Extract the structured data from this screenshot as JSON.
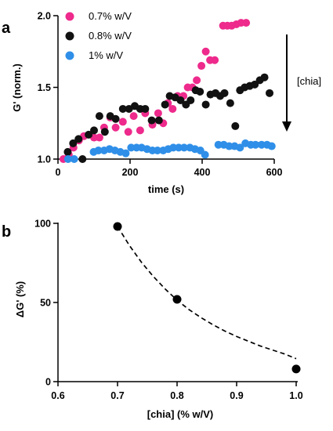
{
  "chart_data": [
    {
      "panel_label": "a",
      "type": "scatter",
      "xlabel": "time (s)",
      "ylabel": "G' (norm.)",
      "xlim": [
        0,
        600
      ],
      "ylim": [
        1.0,
        2.0
      ],
      "xticks": [
        0,
        200,
        400,
        600
      ],
      "yticks": [
        1.0,
        1.5,
        2.0
      ],
      "ytick_labels": [
        "1.0",
        "1.5",
        "2.0"
      ],
      "grid": false,
      "legend_position": "top-left",
      "annotation": {
        "text": "[chia]",
        "arrow": "down"
      },
      "series": [
        {
          "name": "0.7% w/V",
          "color": "#ee2a8c",
          "points": [
            [
              15,
              1.0
            ],
            [
              30,
              1.03
            ],
            [
              43,
              1.08
            ],
            [
              58,
              1.13
            ],
            [
              72,
              1.16
            ],
            [
              100,
              1.15
            ],
            [
              115,
              1.15
            ],
            [
              128,
              1.22
            ],
            [
              145,
              1.29
            ],
            [
              160,
              1.22
            ],
            [
              180,
              1.26
            ],
            [
              195,
              1.19
            ],
            [
              210,
              1.3
            ],
            [
              228,
              1.2
            ],
            [
              242,
              1.32
            ],
            [
              262,
              1.24
            ],
            [
              278,
              1.32
            ],
            [
              292,
              1.25
            ],
            [
              305,
              1.39
            ],
            [
              318,
              1.35
            ],
            [
              332,
              1.44
            ],
            [
              348,
              1.44
            ],
            [
              360,
              1.5
            ],
            [
              373,
              1.5
            ],
            [
              385,
              1.55
            ],
            [
              398,
              1.65
            ],
            [
              410,
              1.75
            ],
            [
              422,
              1.69
            ],
            [
              435,
              1.69
            ],
            [
              458,
              1.93
            ],
            [
              470,
              1.93
            ],
            [
              482,
              1.93
            ],
            [
              495,
              1.94
            ],
            [
              508,
              1.95
            ],
            [
              522,
              1.95
            ]
          ]
        },
        {
          "name": "0.8% w/V",
          "color": "#111111",
          "points": [
            [
              27,
              1.05
            ],
            [
              42,
              1.11
            ],
            [
              57,
              1.14
            ],
            [
              68,
              1.0
            ],
            [
              85,
              1.17
            ],
            [
              100,
              1.2
            ],
            [
              115,
              1.3
            ],
            [
              130,
              1.19
            ],
            [
              145,
              1.3
            ],
            [
              160,
              1.28
            ],
            [
              180,
              1.35
            ],
            [
              197,
              1.35
            ],
            [
              213,
              1.37
            ],
            [
              228,
              1.35
            ],
            [
              242,
              1.35
            ],
            [
              260,
              1.27
            ],
            [
              280,
              1.27
            ],
            [
              297,
              1.38
            ],
            [
              310,
              1.44
            ],
            [
              325,
              1.43
            ],
            [
              340,
              1.41
            ],
            [
              355,
              1.38
            ],
            [
              368,
              1.41
            ],
            [
              382,
              1.48
            ],
            [
              394,
              1.47
            ],
            [
              410,
              1.38
            ],
            [
              423,
              1.45
            ],
            [
              437,
              1.46
            ],
            [
              450,
              1.44
            ],
            [
              462,
              1.46
            ],
            [
              478,
              1.39
            ],
            [
              492,
              1.23
            ],
            [
              505,
              1.48
            ],
            [
              518,
              1.5
            ],
            [
              532,
              1.51
            ],
            [
              546,
              1.52
            ],
            [
              560,
              1.55
            ],
            [
              573,
              1.57
            ],
            [
              587,
              1.46
            ]
          ]
        },
        {
          "name": "1% w/V",
          "color": "#2f8fe8",
          "points": [
            [
              28,
              1.0
            ],
            [
              45,
              1.0
            ],
            [
              99,
              1.05
            ],
            [
              112,
              1.06
            ],
            [
              128,
              1.06
            ],
            [
              143,
              1.07
            ],
            [
              158,
              1.06
            ],
            [
              173,
              1.05
            ],
            [
              188,
              1.04
            ],
            [
              203,
              1.08
            ],
            [
              218,
              1.08
            ],
            [
              232,
              1.08
            ],
            [
              247,
              1.07
            ],
            [
              262,
              1.06
            ],
            [
              276,
              1.06
            ],
            [
              292,
              1.06
            ],
            [
              306,
              1.07
            ],
            [
              320,
              1.08
            ],
            [
              335,
              1.08
            ],
            [
              350,
              1.08
            ],
            [
              366,
              1.08
            ],
            [
              380,
              1.07
            ],
            [
              395,
              1.06
            ],
            [
              408,
              1.03
            ],
            [
              445,
              1.1
            ],
            [
              460,
              1.1
            ],
            [
              475,
              1.09
            ],
            [
              490,
              1.09
            ],
            [
              505,
              1.08
            ],
            [
              520,
              1.11
            ],
            [
              535,
              1.1
            ],
            [
              548,
              1.1
            ],
            [
              565,
              1.1
            ],
            [
              580,
              1.1
            ],
            [
              593,
              1.09
            ]
          ]
        }
      ]
    },
    {
      "panel_label": "b",
      "type": "scatter",
      "xlabel": "[chia] (% w/V)",
      "ylabel": "ΔG' (%)",
      "xlim": [
        0.6,
        1.0
      ],
      "ylim": [
        0,
        100
      ],
      "xticks": [
        0.6,
        0.7,
        0.8,
        0.9,
        1.0
      ],
      "xtick_labels": [
        "0.6",
        "0.7",
        "0.8",
        "0.9",
        "1.0"
      ],
      "yticks": [
        0,
        50,
        100
      ],
      "grid": false,
      "point_color": "#000000",
      "points": [
        [
          0.7,
          98
        ],
        [
          0.8,
          52
        ],
        [
          1.0,
          8
        ]
      ],
      "fit": {
        "style": "dashed",
        "color": "#000000",
        "x": [
          0.7,
          0.72,
          0.74,
          0.76,
          0.78,
          0.8,
          0.82,
          0.84,
          0.86,
          0.88,
          0.9,
          0.92,
          0.94,
          0.96,
          0.98,
          1.0
        ],
        "y": [
          98,
          86,
          75.5,
          66.5,
          58.5,
          51.5,
          45.5,
          40.5,
          36,
          32,
          28.5,
          25.5,
          22.5,
          20,
          17.5,
          14.5
        ]
      }
    }
  ]
}
